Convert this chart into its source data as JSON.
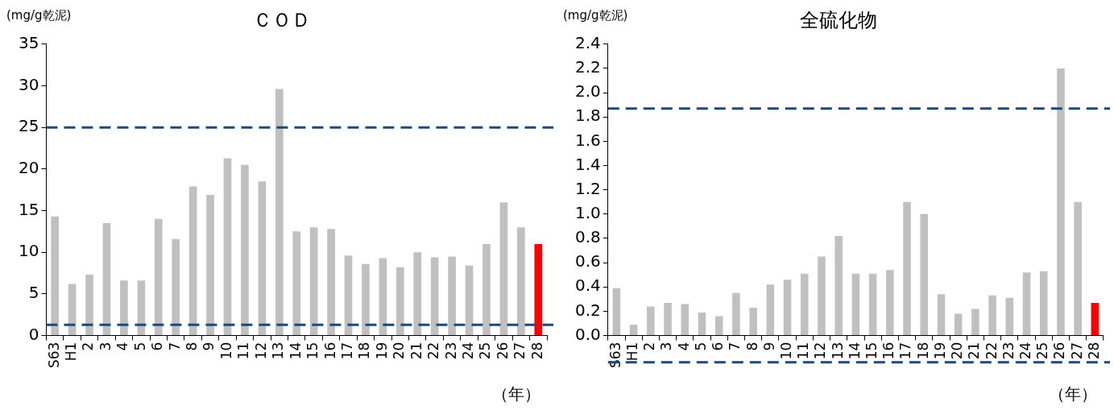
{
  "chart_data": [
    {
      "type": "bar",
      "title": "ＣＯＤ",
      "ylabel": "(mg/g乾泥)",
      "xlabel": "（年）",
      "categories": [
        "S63",
        "H1",
        "2",
        "3",
        "4",
        "5",
        "6",
        "7",
        "8",
        "9",
        "10",
        "11",
        "12",
        "13",
        "14",
        "15",
        "16",
        "17",
        "18",
        "19",
        "20",
        "21",
        "22",
        "23",
        "24",
        "25",
        "26",
        "27",
        "28"
      ],
      "values": [
        14.3,
        6.2,
        7.3,
        13.5,
        6.6,
        6.6,
        14.0,
        11.6,
        17.9,
        16.9,
        21.3,
        20.5,
        18.5,
        29.6,
        12.5,
        13.0,
        12.8,
        9.6,
        8.6,
        9.3,
        8.2,
        10.0,
        9.4,
        9.5,
        8.4,
        11.0,
        16.0,
        13.0,
        11.0
      ],
      "colors": [
        "#c0c0c0",
        "#c0c0c0",
        "#c0c0c0",
        "#c0c0c0",
        "#c0c0c0",
        "#c0c0c0",
        "#c0c0c0",
        "#c0c0c0",
        "#c0c0c0",
        "#c0c0c0",
        "#c0c0c0",
        "#c0c0c0",
        "#c0c0c0",
        "#c0c0c0",
        "#c0c0c0",
        "#c0c0c0",
        "#c0c0c0",
        "#c0c0c0",
        "#c0c0c0",
        "#c0c0c0",
        "#c0c0c0",
        "#c0c0c0",
        "#c0c0c0",
        "#c0c0c0",
        "#c0c0c0",
        "#c0c0c0",
        "#c0c0c0",
        "#c0c0c0",
        "#ff0000"
      ],
      "ylim": [
        0,
        35
      ],
      "yticks": [
        0,
        5,
        10,
        15,
        20,
        25,
        30,
        35
      ],
      "grid": false,
      "legend": false,
      "ref_lines": [
        {
          "axis": "y",
          "value": 25,
          "color": "#1f497d",
          "line_style": "dashed"
        },
        {
          "axis": "y",
          "value": 1.3,
          "color": "#1f497d",
          "line_style": "dashed"
        }
      ]
    },
    {
      "type": "bar",
      "title": "全硫化物",
      "ylabel": "(mg/g乾泥)",
      "xlabel": "（年）",
      "categories": [
        "S63",
        "H1",
        "2",
        "3",
        "4",
        "5",
        "6",
        "7",
        "8",
        "9",
        "10",
        "11",
        "12",
        "13",
        "14",
        "15",
        "16",
        "17",
        "18",
        "19",
        "20",
        "21",
        "22",
        "23",
        "24",
        "25",
        "26",
        "27",
        "28"
      ],
      "values": [
        0.39,
        0.09,
        0.24,
        0.27,
        0.26,
        0.19,
        0.16,
        0.35,
        0.23,
        0.42,
        0.46,
        0.51,
        0.65,
        0.82,
        0.51,
        0.51,
        0.54,
        1.1,
        1.0,
        0.34,
        0.18,
        0.22,
        0.33,
        0.31,
        0.52,
        0.53,
        2.2,
        1.1,
        0.27
      ],
      "colors": [
        "#c0c0c0",
        "#c0c0c0",
        "#c0c0c0",
        "#c0c0c0",
        "#c0c0c0",
        "#c0c0c0",
        "#c0c0c0",
        "#c0c0c0",
        "#c0c0c0",
        "#c0c0c0",
        "#c0c0c0",
        "#c0c0c0",
        "#c0c0c0",
        "#c0c0c0",
        "#c0c0c0",
        "#c0c0c0",
        "#c0c0c0",
        "#c0c0c0",
        "#c0c0c0",
        "#c0c0c0",
        "#c0c0c0",
        "#c0c0c0",
        "#c0c0c0",
        "#c0c0c0",
        "#c0c0c0",
        "#c0c0c0",
        "#c0c0c0",
        "#c0c0c0",
        "#ff0000"
      ],
      "ylim": [
        0,
        2.4
      ],
      "yticks": [
        {
          "value": 0,
          "label": "0.0"
        },
        {
          "value": 0.2,
          "label": "0.2"
        },
        {
          "value": 0.4,
          "label": "0.4"
        },
        {
          "value": 0.6,
          "label": "0.6"
        },
        {
          "value": 0.8,
          "label": "0.8"
        },
        {
          "value": 1,
          "label": "1.0"
        },
        {
          "value": 1.2,
          "label": "1.2"
        },
        {
          "value": 1.4,
          "label": "1.4"
        },
        {
          "value": 1.6,
          "label": "1.6"
        },
        {
          "value": 1.8,
          "label": "1.8"
        },
        {
          "value": 2,
          "label": "2.0"
        },
        {
          "value": 2.2,
          "label": "2.2"
        },
        {
          "value": 2.4,
          "label": "2.4"
        }
      ],
      "grid": false,
      "legend": false,
      "ref_lines": [
        {
          "axis": "y",
          "value": 1.87,
          "color": "#1f497d",
          "line_style": "dashed"
        },
        {
          "axis": "y",
          "value": -0.22,
          "color": "#1f497d",
          "line_style": "dashed"
        }
      ]
    }
  ]
}
